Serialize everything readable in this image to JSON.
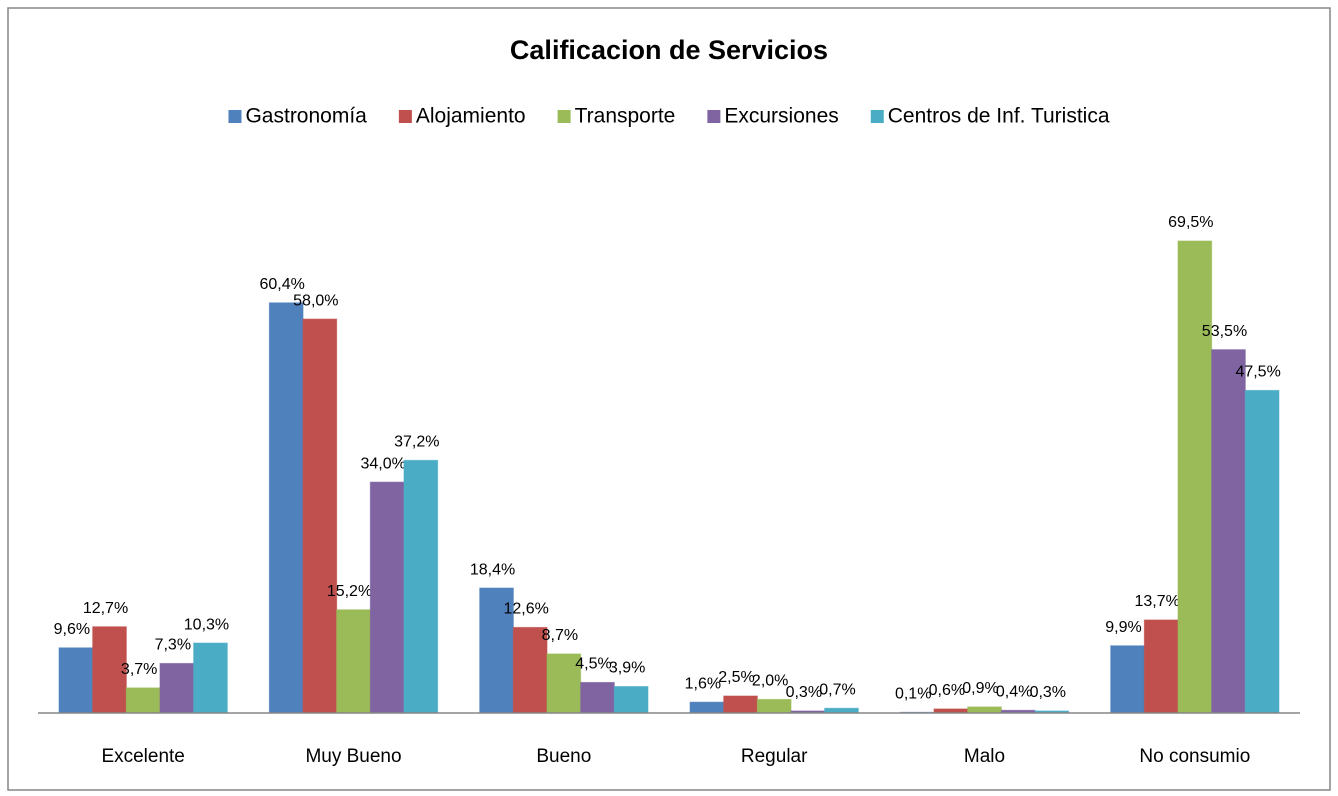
{
  "chart_data": {
    "type": "bar",
    "title": "Calificacion de Servicios",
    "categories": [
      "Excelente",
      "Muy Bueno",
      "Bueno",
      "Regular",
      "Malo",
      "No consumio"
    ],
    "series": [
      {
        "name": "Gastronomía",
        "color": "#4f81bd",
        "values": [
          9.6,
          60.4,
          18.4,
          1.6,
          0.1,
          9.9
        ],
        "value_labels": [
          "9,6%",
          "60,4%",
          "18,4%",
          "1,6%",
          "0,1%",
          "9,9%"
        ]
      },
      {
        "name": "Alojamiento",
        "color": "#c0504d",
        "values": [
          12.7,
          58.0,
          12.6,
          2.5,
          0.6,
          13.7
        ],
        "value_labels": [
          "12,7%",
          "58,0%",
          "12,6%",
          "2,5%",
          "0,6%",
          "13,7%"
        ]
      },
      {
        "name": "Transporte",
        "color": "#9bbb59",
        "values": [
          3.7,
          15.2,
          8.7,
          2.0,
          0.9,
          69.5
        ],
        "value_labels": [
          "3,7%",
          "15,2%",
          "8,7%",
          "2,0%",
          "0,9%",
          "69,5%"
        ]
      },
      {
        "name": "Excursiones",
        "color": "#8064a2",
        "values": [
          7.3,
          34.0,
          4.5,
          0.3,
          0.4,
          53.5
        ],
        "value_labels": [
          "7,3%",
          "34,0%",
          "4,5%",
          "0,3%",
          "0,4%",
          "53,5%"
        ]
      },
      {
        "name": "Centros de Inf. Turistica",
        "color": "#4bacc6",
        "values": [
          10.3,
          37.2,
          3.9,
          0.7,
          0.3,
          47.5
        ],
        "value_labels": [
          "10,3%",
          "37,2%",
          "3,9%",
          "0,7%",
          "0,3%",
          "47,5%"
        ]
      }
    ],
    "legend": "top"
  }
}
